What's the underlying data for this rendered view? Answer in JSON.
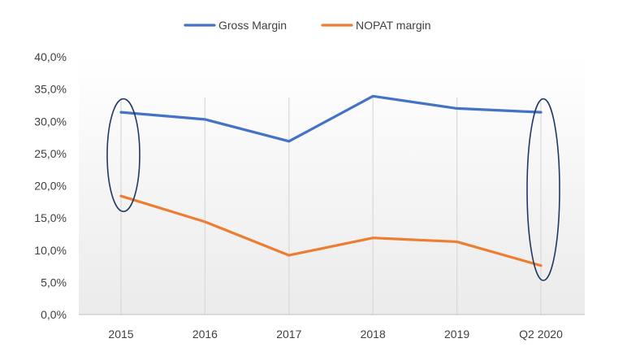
{
  "chart_data": {
    "type": "line",
    "title": "",
    "xlabel": "",
    "ylabel": "",
    "categories": [
      "2015",
      "2016",
      "2017",
      "2018",
      "2019",
      "Q2 2020"
    ],
    "series": [
      {
        "name": "Gross Margin",
        "color": "#4472C4",
        "values": [
          31.4,
          30.3,
          26.9,
          33.9,
          32.0,
          31.4
        ]
      },
      {
        "name": "NOPAT margin",
        "color": "#ED7D31",
        "values": [
          18.4,
          14.4,
          9.2,
          11.9,
          11.3,
          7.6
        ]
      }
    ],
    "ylim": [
      0,
      40
    ],
    "yticks": [
      0,
      5,
      10,
      15,
      20,
      25,
      30,
      35,
      40
    ],
    "ytick_labels": [
      "0,0%",
      "5,0%",
      "10,0%",
      "15,0%",
      "20,0%",
      "25,0%",
      "30,0%",
      "35,0%",
      "40,0%"
    ],
    "grid": "vertical",
    "legend_position": "top",
    "highlights": [
      {
        "shape": "ellipse",
        "category": "2015",
        "range": [
          16,
          33.5
        ],
        "color": "#1F3864"
      },
      {
        "shape": "ellipse",
        "category": "Q2 2020",
        "range": [
          5.3,
          33.5
        ],
        "color": "#1F3864"
      }
    ]
  }
}
